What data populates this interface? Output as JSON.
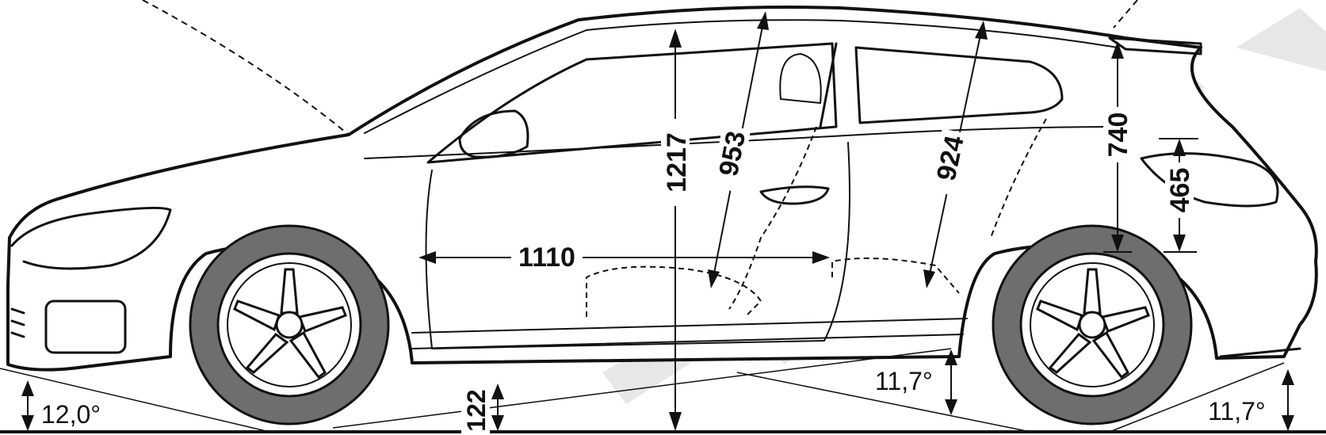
{
  "dimensions": {
    "cabin_length": "1110",
    "interior_height": "1217",
    "front_headroom": "953",
    "rear_headroom": "924",
    "rear_headroom_2": "740",
    "rear_seat_height": "465",
    "ground_clearance": "122"
  },
  "angles": {
    "approach": "12,0°",
    "ramp": "11,7°",
    "departure": "11,7°"
  },
  "colors": {
    "line": "#111111",
    "tire": "#6e6e6e",
    "watermark": "#e6e6e6",
    "body": "#ffffff"
  }
}
